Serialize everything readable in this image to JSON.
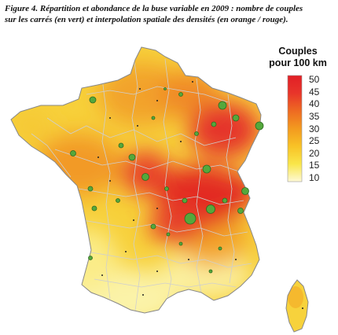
{
  "caption": {
    "line1": "Figure 4. Répartition et abondance de la buse variable en 2009 : nombre de couples",
    "line2": "sur les carrés (en vert) et interpolation spatiale des densités (en orange / rouge)."
  },
  "legend": {
    "title_line1": "Couples",
    "title_line2": "pour 100 km",
    "ticks": [
      "50",
      "45",
      "40",
      "35",
      "30",
      "25",
      "20",
      "15",
      "10"
    ],
    "min_value": 10,
    "max_value": 50,
    "color_stops": [
      "#fef9d6",
      "#f9e64a",
      "#f8c226",
      "#f39a1f",
      "#ee6a22",
      "#e8352a",
      "#e11f26"
    ]
  },
  "colors": {
    "low_density": "#fbf3a8",
    "medium_density": "#f5a623",
    "high_density": "#e32b24",
    "green_squares": "#55a83c",
    "departement_borders": "#cfcfcf",
    "coast_outline": "#888888"
  }
}
